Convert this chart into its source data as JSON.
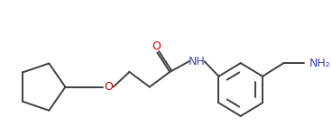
{
  "bg_color": "#ffffff",
  "line_color": "#404040",
  "atom_colors": {
    "O": "#c00000",
    "N": "#4040c0",
    "NH": "#4040c0",
    "NH2": "#4040c0"
  },
  "figsize": [
    3.68,
    1.5
  ],
  "dpi": 100
}
